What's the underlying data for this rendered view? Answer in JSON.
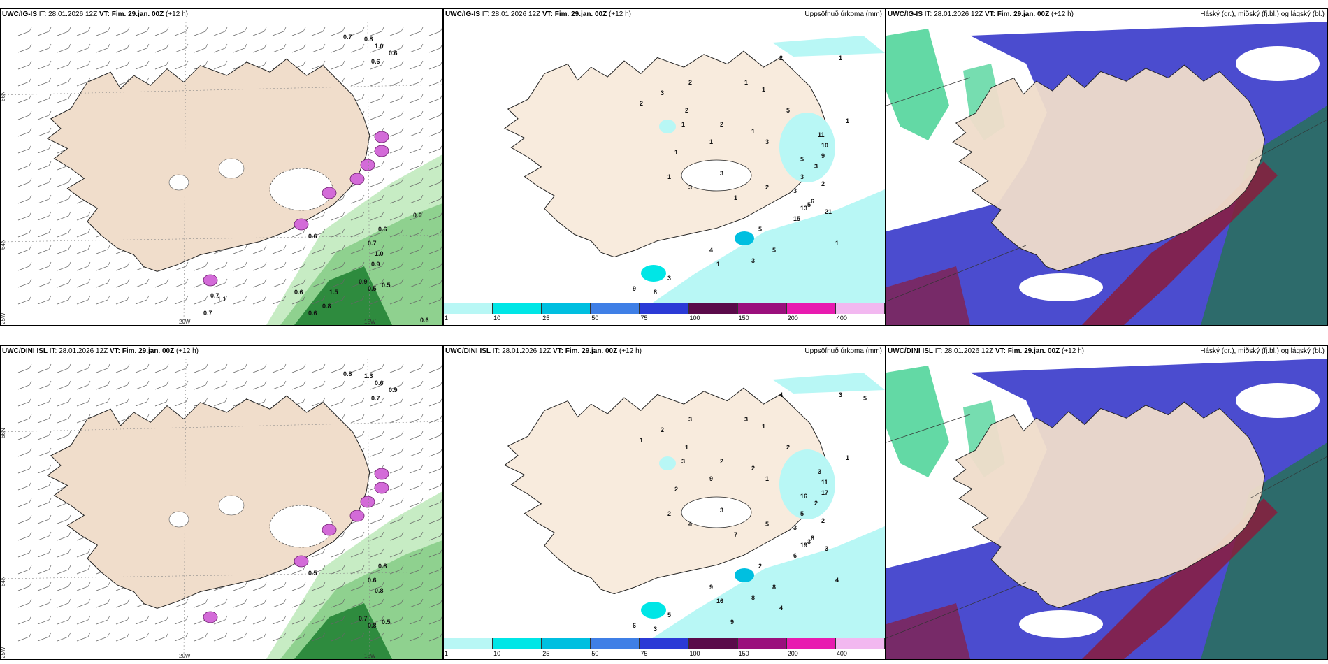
{
  "rows": [
    {
      "model": "UWC/IG-IS",
      "it_label": "IT: 28.01.2026 12Z",
      "vt_label": "VT: Fim. 29.jan. 00Z",
      "lead": "(+12 h)",
      "precip_numbers": [
        "2",
        "1",
        "1",
        "2",
        "1",
        "3",
        "2",
        "2",
        "5",
        "1",
        "1",
        "2",
        "1",
        "1",
        "3",
        "1",
        "11",
        "10",
        "9",
        "5",
        "3",
        "1",
        "3",
        "3",
        "2",
        "3",
        "3",
        "1",
        "6",
        "13",
        "15",
        "21",
        "5",
        "4",
        "1",
        "3",
        "5",
        "3",
        "9",
        "8",
        "5",
        "2",
        "1"
      ],
      "wind_values": [
        "0.7",
        "0.8",
        "1.0",
        "0.6",
        "0.6",
        "0.6",
        "0.6",
        "0.7",
        "1.0",
        "0.9",
        "0.5",
        "0.5",
        "0.6",
        "0.7",
        "0.7",
        "0.8",
        "0.6",
        "0.6",
        "0.6",
        "1.1",
        "1.5",
        "0.9"
      ],
      "show_cbar": true
    },
    {
      "model": "UWC/DINI ISL",
      "it_label": "IT: 28.01.2026 12Z",
      "vt_label": "VT: Fim. 29.jan. 00Z",
      "lead": "(+12 h)",
      "precip_numbers": [
        "4",
        "3",
        "3",
        "3",
        "1",
        "2",
        "1",
        "1",
        "2",
        "1",
        "3",
        "2",
        "2",
        "9",
        "1",
        "2",
        "3",
        "11",
        "17",
        "16",
        "2",
        "2",
        "3",
        "4",
        "5",
        "5",
        "3",
        "7",
        "8",
        "19",
        "6",
        "3",
        "2",
        "9",
        "16",
        "8",
        "8",
        "5",
        "6",
        "3",
        "3",
        "2",
        "4",
        "4",
        "9",
        "5"
      ],
      "wind_values": [
        "0.8",
        "1.3",
        "0.6",
        "0.9",
        "0.7",
        "0.5",
        "0.8",
        "0.6",
        "0.8",
        "0.7",
        "0.8",
        "0.5"
      ],
      "show_cbar": true
    }
  ],
  "titles": {
    "precip": "Uppsöfnuð úrkoma (mm)",
    "cloud": "Háský (gr.), miðský (fj.bl.) og lágský (bl.)"
  },
  "axis": {
    "lat66": "66N",
    "lat64": "64N",
    "lat25": "25W",
    "lon20": "20W",
    "lon15": "15W"
  },
  "colorbar": {
    "labels": [
      "1",
      "10",
      "25",
      "50",
      "75",
      "100",
      "150",
      "200",
      "400"
    ],
    "colors": [
      "#b8f7f5",
      "#00e6e6",
      "#00bfe0",
      "#3f7fe6",
      "#2b3ad6",
      "#5a0a4a",
      "#9a0f7c",
      "#e81bb0",
      "#f2b8f0"
    ]
  }
}
